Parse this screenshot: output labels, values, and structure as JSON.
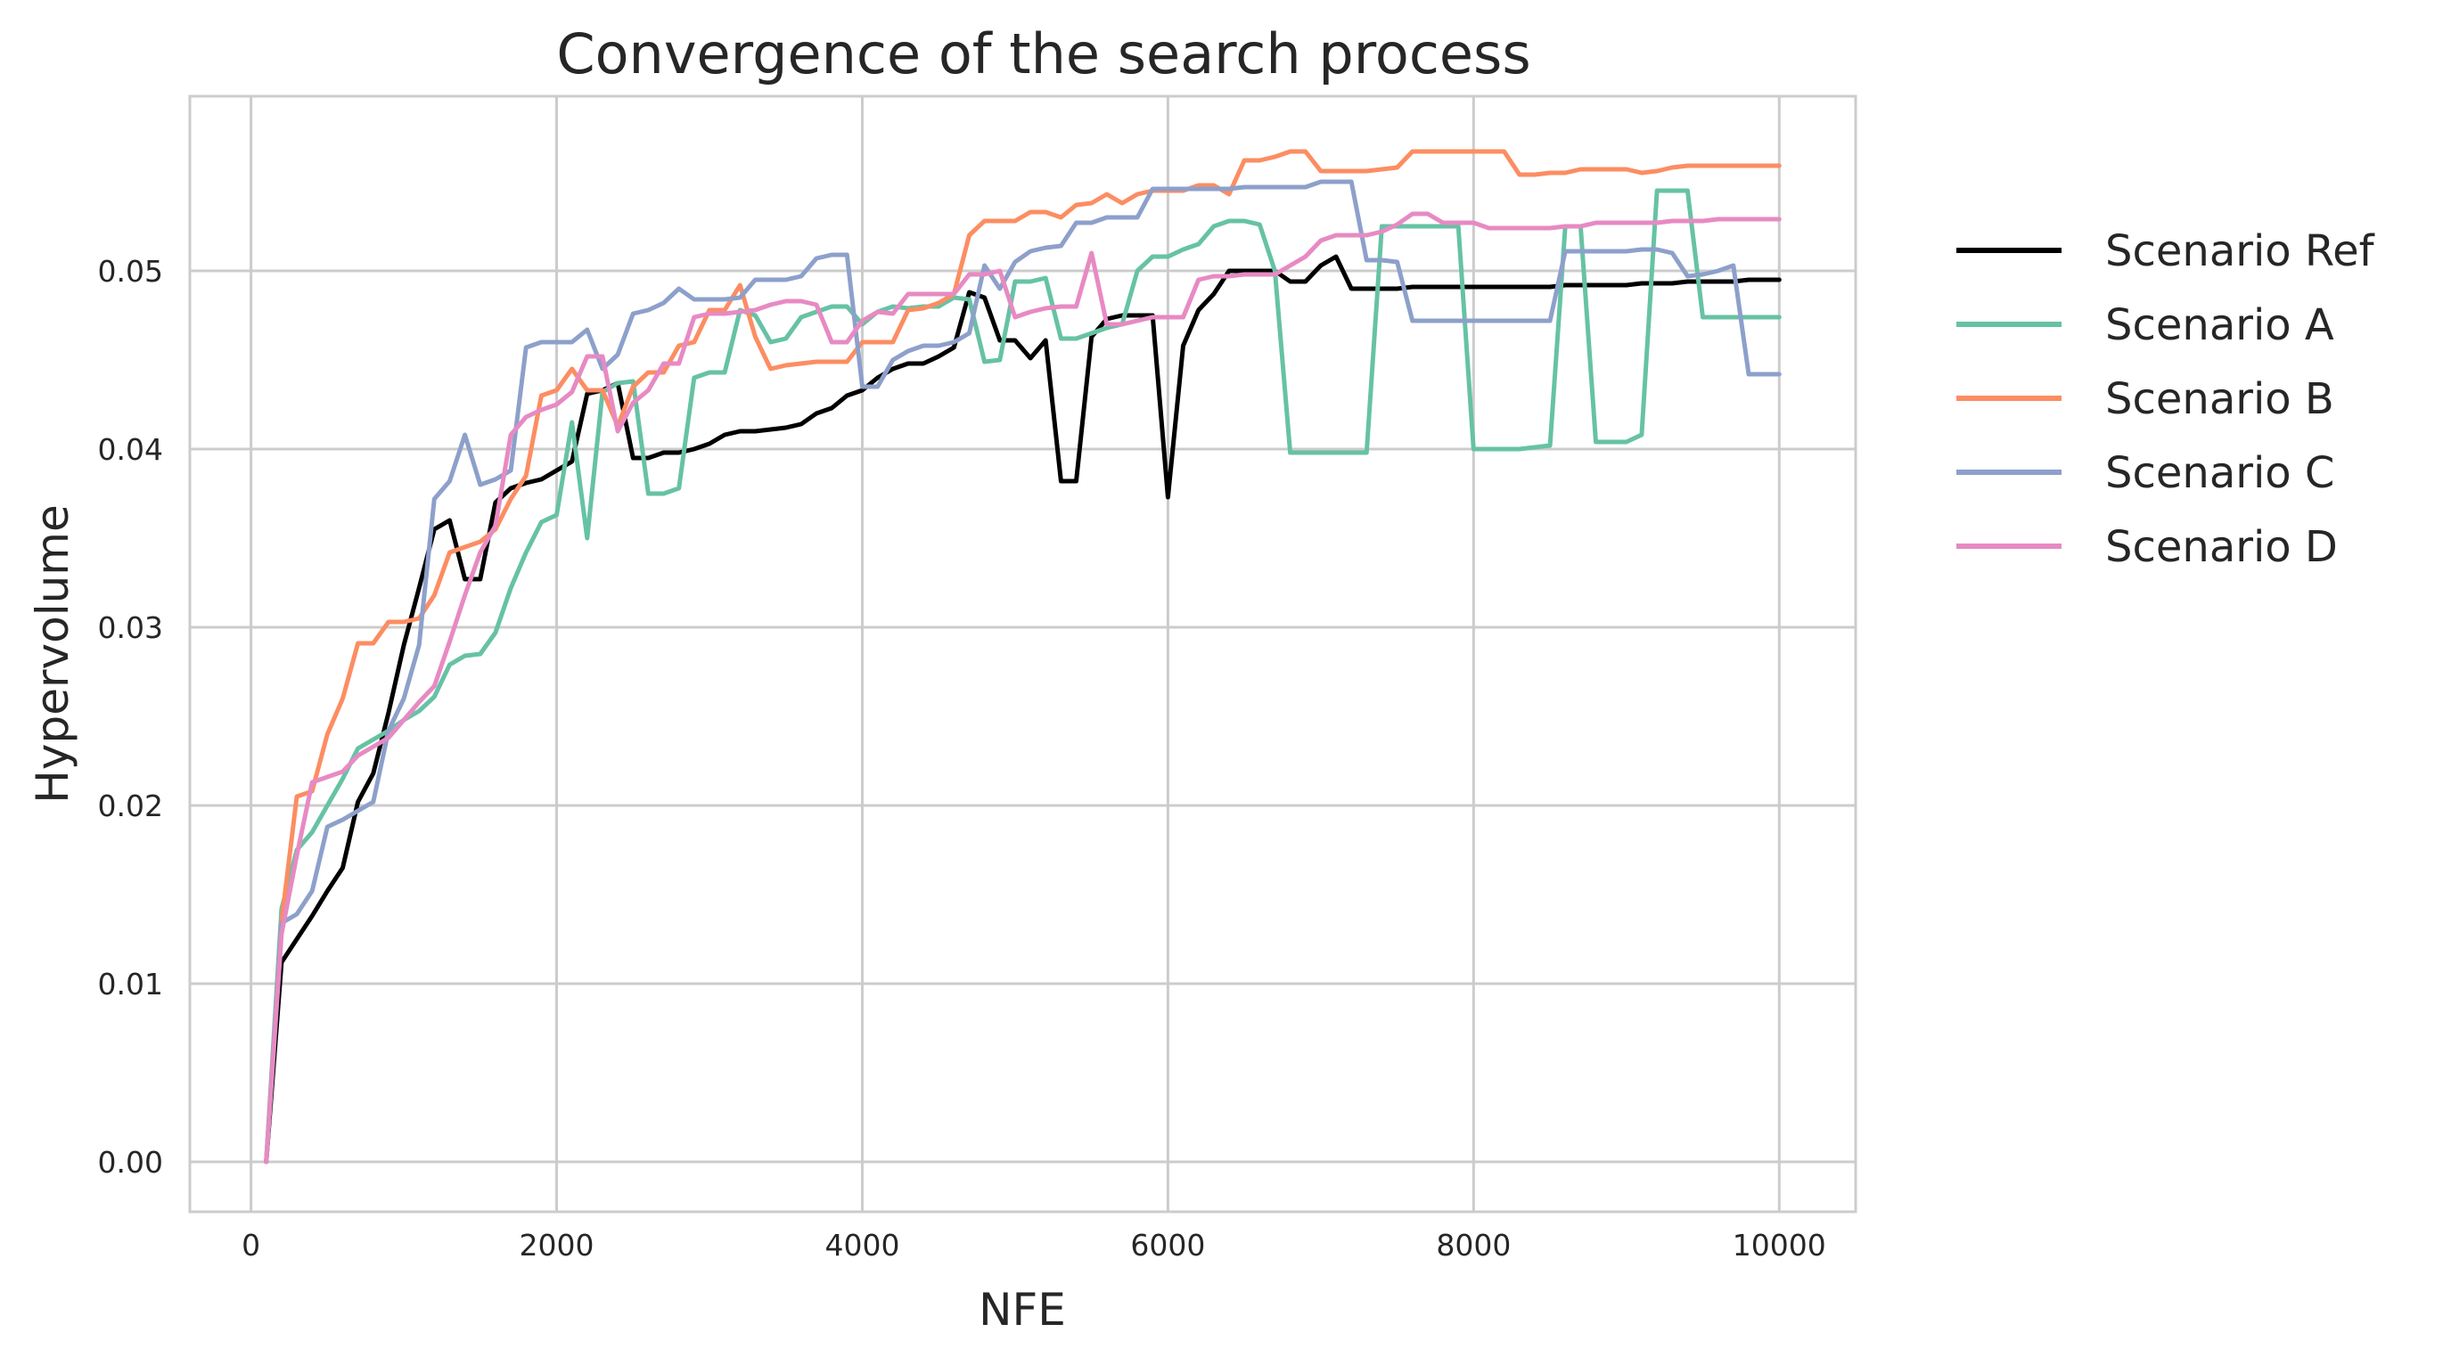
{
  "chart_data": {
    "type": "line",
    "title": "Convergence of the search process",
    "xlabel": "NFE",
    "ylabel": "Hypervolume",
    "xlim": [
      -400,
      10500
    ],
    "ylim": [
      -0.0028,
      0.0598
    ],
    "xticks": [
      0,
      2000,
      4000,
      6000,
      8000,
      10000
    ],
    "xtick_labels": [
      "0",
      "2000",
      "4000",
      "6000",
      "8000",
      "10000"
    ],
    "yticks": [
      0.0,
      0.01,
      0.02,
      0.03,
      0.04,
      0.05
    ],
    "ytick_labels": [
      "0.00",
      "0.01",
      "0.02",
      "0.03",
      "0.04",
      "0.05"
    ],
    "grid": true,
    "legend_position": "outside-right",
    "series": [
      {
        "name": "Scenario Ref",
        "color": "#000000",
        "x": [
          100,
          200,
          300,
          400,
          500,
          600,
          700,
          800,
          900,
          1000,
          1100,
          1200,
          1300,
          1400,
          1500,
          1600,
          1700,
          1800,
          1900,
          2000,
          2100,
          2200,
          2300,
          2400,
          2500,
          2600,
          2700,
          2800,
          2900,
          3000,
          3100,
          3200,
          3300,
          3400,
          3500,
          3600,
          3700,
          3800,
          3900,
          4000,
          4100,
          4200,
          4300,
          4400,
          4500,
          4600,
          4700,
          4800,
          4900,
          5000,
          5100,
          5200,
          5300,
          5400,
          5500,
          5600,
          5700,
          5800,
          5900,
          6000,
          6100,
          6200,
          6300,
          6400,
          6500,
          6600,
          6700,
          6800,
          6900,
          7000,
          7100,
          7200,
          7300,
          7400,
          7500,
          7600,
          7700,
          7800,
          7900,
          8000,
          8100,
          8200,
          8300,
          8400,
          8500,
          8600,
          8700,
          8800,
          8900,
          9000,
          9100,
          9200,
          9300,
          9400,
          9500,
          9600,
          9700,
          9800,
          9900,
          10000
        ],
        "values": [
          0.0,
          0.0112,
          0.0125,
          0.0138,
          0.0152,
          0.0165,
          0.0202,
          0.0218,
          0.0252,
          0.029,
          0.0322,
          0.0355,
          0.036,
          0.0327,
          0.0327,
          0.037,
          0.0378,
          0.0381,
          0.0383,
          0.0388,
          0.0393,
          0.0431,
          0.0433,
          0.0437,
          0.0395,
          0.0395,
          0.0398,
          0.0398,
          0.04,
          0.0403,
          0.0408,
          0.041,
          0.041,
          0.0411,
          0.0412,
          0.0414,
          0.042,
          0.0423,
          0.043,
          0.0433,
          0.044,
          0.0445,
          0.0448,
          0.0448,
          0.0452,
          0.0457,
          0.0488,
          0.0485,
          0.0461,
          0.0461,
          0.0451,
          0.0461,
          0.0382,
          0.0382,
          0.0463,
          0.0473,
          0.0475,
          0.0475,
          0.0475,
          0.0373,
          0.0458,
          0.0478,
          0.0487,
          0.05,
          0.05,
          0.05,
          0.05,
          0.0494,
          0.0494,
          0.0503,
          0.0508,
          0.049,
          0.049,
          0.049,
          0.049,
          0.0491,
          0.0491,
          0.0491,
          0.0491,
          0.0491,
          0.0491,
          0.0491,
          0.0491,
          0.0491,
          0.0491,
          0.0492,
          0.0492,
          0.0492,
          0.0492,
          0.0492,
          0.0493,
          0.0493,
          0.0493,
          0.0494,
          0.0494,
          0.0494,
          0.0494,
          0.0495,
          0.0495,
          0.0495
        ]
      },
      {
        "name": "Scenario A",
        "color": "#66c2a5",
        "x": [
          100,
          200,
          300,
          400,
          500,
          600,
          700,
          800,
          900,
          1000,
          1100,
          1200,
          1300,
          1400,
          1500,
          1600,
          1700,
          1800,
          1900,
          2000,
          2100,
          2200,
          2300,
          2400,
          2500,
          2600,
          2700,
          2800,
          2900,
          3000,
          3100,
          3200,
          3300,
          3400,
          3500,
          3600,
          3700,
          3800,
          3900,
          4000,
          4100,
          4200,
          4300,
          4400,
          4500,
          4600,
          4700,
          4800,
          4900,
          5000,
          5100,
          5200,
          5300,
          5400,
          5500,
          5600,
          5700,
          5800,
          5900,
          6000,
          6100,
          6200,
          6300,
          6400,
          6500,
          6600,
          6700,
          6800,
          6900,
          7000,
          7100,
          7200,
          7300,
          7400,
          7500,
          7600,
          7700,
          7800,
          7900,
          8000,
          8100,
          8200,
          8300,
          8400,
          8500,
          8600,
          8700,
          8800,
          8900,
          9000,
          9100,
          9200,
          9300,
          9400,
          9500,
          9600,
          9700,
          9800,
          9900,
          10000
        ],
        "values": [
          0.0,
          0.0142,
          0.0175,
          0.0185,
          0.02,
          0.0215,
          0.0232,
          0.0237,
          0.0242,
          0.0248,
          0.0253,
          0.0261,
          0.0279,
          0.0284,
          0.0285,
          0.0297,
          0.0322,
          0.0342,
          0.0359,
          0.0363,
          0.0415,
          0.035,
          0.0432,
          0.0437,
          0.0438,
          0.0375,
          0.0375,
          0.0378,
          0.044,
          0.0443,
          0.0443,
          0.0478,
          0.0475,
          0.046,
          0.0462,
          0.0474,
          0.0477,
          0.048,
          0.048,
          0.047,
          0.0477,
          0.048,
          0.0479,
          0.048,
          0.048,
          0.0485,
          0.0484,
          0.0449,
          0.045,
          0.0494,
          0.0494,
          0.0496,
          0.0462,
          0.0462,
          0.0465,
          0.0468,
          0.047,
          0.05,
          0.0508,
          0.0508,
          0.0512,
          0.0515,
          0.0525,
          0.0528,
          0.0528,
          0.0526,
          0.05,
          0.0398,
          0.0398,
          0.0398,
          0.0398,
          0.0398,
          0.0398,
          0.0525,
          0.0525,
          0.0525,
          0.0525,
          0.0525,
          0.0525,
          0.04,
          0.04,
          0.04,
          0.04,
          0.0401,
          0.0402,
          0.0525,
          0.0525,
          0.0404,
          0.0404,
          0.0404,
          0.0408,
          0.0545,
          0.0545,
          0.0545,
          0.0474,
          0.0474,
          0.0474,
          0.0474,
          0.0474,
          0.0474
        ]
      },
      {
        "name": "Scenario B",
        "color": "#fc8d62",
        "x": [
          100,
          200,
          300,
          400,
          500,
          600,
          700,
          800,
          900,
          1000,
          1100,
          1200,
          1300,
          1400,
          1500,
          1600,
          1700,
          1800,
          1900,
          2000,
          2100,
          2200,
          2300,
          2400,
          2500,
          2600,
          2700,
          2800,
          2900,
          3000,
          3100,
          3200,
          3300,
          3400,
          3500,
          3600,
          3700,
          3800,
          3900,
          4000,
          4100,
          4200,
          4300,
          4400,
          4500,
          4600,
          4700,
          4800,
          4900,
          5000,
          5100,
          5200,
          5300,
          5400,
          5500,
          5600,
          5700,
          5800,
          5900,
          6000,
          6100,
          6200,
          6300,
          6400,
          6500,
          6600,
          6700,
          6800,
          6900,
          7000,
          7100,
          7200,
          7300,
          7400,
          7500,
          7600,
          7700,
          7800,
          7900,
          8000,
          8100,
          8200,
          8300,
          8400,
          8500,
          8600,
          8700,
          8800,
          8900,
          9000,
          9100,
          9200,
          9300,
          9400,
          9500,
          9600,
          9700,
          9800,
          9900,
          10000
        ],
        "values": [
          0.0,
          0.0135,
          0.0205,
          0.0208,
          0.024,
          0.026,
          0.0291,
          0.0291,
          0.0303,
          0.0303,
          0.0305,
          0.0318,
          0.0342,
          0.0345,
          0.0348,
          0.0355,
          0.0372,
          0.0385,
          0.043,
          0.0433,
          0.0445,
          0.0433,
          0.0433,
          0.0413,
          0.0435,
          0.0443,
          0.0443,
          0.0458,
          0.046,
          0.0478,
          0.0478,
          0.0492,
          0.0463,
          0.0445,
          0.0447,
          0.0448,
          0.0449,
          0.0449,
          0.0449,
          0.046,
          0.046,
          0.046,
          0.0478,
          0.0479,
          0.0482,
          0.0487,
          0.052,
          0.0528,
          0.0528,
          0.0528,
          0.0533,
          0.0533,
          0.053,
          0.0537,
          0.0538,
          0.0543,
          0.0538,
          0.0543,
          0.0545,
          0.0545,
          0.0545,
          0.0548,
          0.0548,
          0.0543,
          0.0562,
          0.0562,
          0.0564,
          0.0567,
          0.0567,
          0.0556,
          0.0556,
          0.0556,
          0.0556,
          0.0557,
          0.0558,
          0.0567,
          0.0567,
          0.0567,
          0.0567,
          0.0567,
          0.0567,
          0.0567,
          0.0554,
          0.0554,
          0.0555,
          0.0555,
          0.0557,
          0.0557,
          0.0557,
          0.0557,
          0.0555,
          0.0556,
          0.0558,
          0.0559,
          0.0559,
          0.0559,
          0.0559,
          0.0559,
          0.0559,
          0.0559
        ]
      },
      {
        "name": "Scenario C",
        "color": "#8da0cb",
        "x": [
          100,
          200,
          300,
          400,
          500,
          600,
          700,
          800,
          900,
          1000,
          1100,
          1200,
          1300,
          1400,
          1500,
          1600,
          1700,
          1800,
          1900,
          2000,
          2100,
          2200,
          2300,
          2400,
          2500,
          2600,
          2700,
          2800,
          2900,
          3000,
          3100,
          3200,
          3300,
          3400,
          3500,
          3600,
          3700,
          3800,
          3900,
          4000,
          4100,
          4200,
          4300,
          4400,
          4500,
          4600,
          4700,
          4800,
          4900,
          5000,
          5100,
          5200,
          5300,
          5400,
          5500,
          5600,
          5700,
          5800,
          5900,
          6000,
          6100,
          6200,
          6300,
          6400,
          6500,
          6600,
          6700,
          6800,
          6900,
          7000,
          7100,
          7200,
          7300,
          7400,
          7500,
          7600,
          7700,
          7800,
          7900,
          8000,
          8100,
          8200,
          8300,
          8400,
          8500,
          8600,
          8700,
          8800,
          8900,
          9000,
          9100,
          9200,
          9300,
          9400,
          9500,
          9600,
          9700,
          9800,
          9900,
          10000
        ],
        "values": [
          0.0,
          0.0134,
          0.0139,
          0.0152,
          0.0188,
          0.0192,
          0.0197,
          0.0202,
          0.0242,
          0.026,
          0.029,
          0.0372,
          0.0382,
          0.0408,
          0.038,
          0.0383,
          0.0388,
          0.0457,
          0.046,
          0.046,
          0.046,
          0.0467,
          0.0445,
          0.0453,
          0.0476,
          0.0478,
          0.0482,
          0.049,
          0.0484,
          0.0484,
          0.0484,
          0.0485,
          0.0495,
          0.0495,
          0.0495,
          0.0497,
          0.0507,
          0.0509,
          0.0509,
          0.0435,
          0.0435,
          0.045,
          0.0455,
          0.0458,
          0.0458,
          0.046,
          0.0465,
          0.0503,
          0.049,
          0.0505,
          0.0511,
          0.0513,
          0.0514,
          0.0527,
          0.0527,
          0.053,
          0.053,
          0.053,
          0.0546,
          0.0546,
          0.0546,
          0.0546,
          0.0546,
          0.0546,
          0.0547,
          0.0547,
          0.0547,
          0.0547,
          0.0547,
          0.055,
          0.055,
          0.055,
          0.0506,
          0.0506,
          0.0505,
          0.0472,
          0.0472,
          0.0472,
          0.0472,
          0.0472,
          0.0472,
          0.0472,
          0.0472,
          0.0472,
          0.0472,
          0.0511,
          0.0511,
          0.0511,
          0.0511,
          0.0511,
          0.0512,
          0.0512,
          0.051,
          0.0497,
          0.0498,
          0.05,
          0.0503,
          0.0442,
          0.0442,
          0.0442
        ]
      },
      {
        "name": "Scenario D",
        "color": "#e78ac3",
        "x": [
          100,
          200,
          300,
          400,
          500,
          600,
          700,
          800,
          900,
          1000,
          1100,
          1200,
          1300,
          1400,
          1500,
          1600,
          1700,
          1800,
          1900,
          2000,
          2100,
          2200,
          2300,
          2400,
          2500,
          2600,
          2700,
          2800,
          2900,
          3000,
          3100,
          3200,
          3300,
          3400,
          3500,
          3600,
          3700,
          3800,
          3900,
          4000,
          4100,
          4200,
          4300,
          4400,
          4500,
          4600,
          4700,
          4800,
          4900,
          5000,
          5100,
          5200,
          5300,
          5400,
          5500,
          5600,
          5700,
          5800,
          5900,
          6000,
          6100,
          6200,
          6300,
          6400,
          6500,
          6600,
          6700,
          6800,
          6900,
          7000,
          7100,
          7200,
          7300,
          7400,
          7500,
          7600,
          7700,
          7800,
          7900,
          8000,
          8100,
          8200,
          8300,
          8400,
          8500,
          8600,
          8700,
          8800,
          8900,
          9000,
          9100,
          9200,
          9300,
          9400,
          9500,
          9600,
          9700,
          9800,
          9900,
          10000
        ],
        "values": [
          0.0,
          0.0128,
          0.0172,
          0.0213,
          0.0216,
          0.0219,
          0.0228,
          0.0233,
          0.0238,
          0.0248,
          0.0258,
          0.0267,
          0.0292,
          0.0318,
          0.0342,
          0.0357,
          0.0408,
          0.0418,
          0.0422,
          0.0425,
          0.0432,
          0.0452,
          0.0452,
          0.041,
          0.0426,
          0.0433,
          0.0448,
          0.0448,
          0.0474,
          0.0476,
          0.0476,
          0.0477,
          0.0478,
          0.0481,
          0.0483,
          0.0483,
          0.0481,
          0.046,
          0.046,
          0.0472,
          0.0477,
          0.0476,
          0.0487,
          0.0487,
          0.0487,
          0.0487,
          0.0498,
          0.0498,
          0.05,
          0.0474,
          0.0477,
          0.0479,
          0.048,
          0.048,
          0.051,
          0.047,
          0.047,
          0.0472,
          0.0474,
          0.0474,
          0.0474,
          0.0495,
          0.0497,
          0.0497,
          0.0498,
          0.0498,
          0.0498,
          0.0503,
          0.0508,
          0.0517,
          0.052,
          0.052,
          0.052,
          0.0522,
          0.0526,
          0.0532,
          0.0532,
          0.0527,
          0.0527,
          0.0527,
          0.0524,
          0.0524,
          0.0524,
          0.0524,
          0.0524,
          0.0525,
          0.0525,
          0.0527,
          0.0527,
          0.0527,
          0.0527,
          0.0527,
          0.0528,
          0.0528,
          0.0528,
          0.0529,
          0.0529,
          0.0529,
          0.0529,
          0.0529
        ]
      }
    ]
  }
}
